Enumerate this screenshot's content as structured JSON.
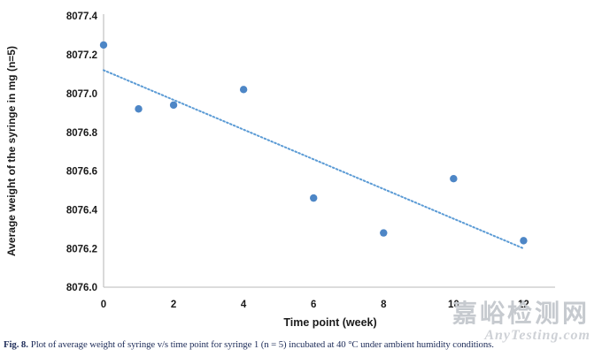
{
  "figure": {
    "caption_label": "Fig. 8.",
    "caption_text": "Plot of average weight of syringe v/s time point for syringe 1 (n = 5) incubated at 40 °C under ambient humidity conditions."
  },
  "watermark": {
    "cn": "嘉峪检测网",
    "en": "AnyTesting.com"
  },
  "chart_data": {
    "type": "scatter",
    "title": "",
    "xlabel": "Time point (week)",
    "ylabel": "Average weight of the syringe in mg (n=5)",
    "x": [
      0,
      1,
      2,
      4,
      6,
      8,
      10,
      12
    ],
    "y": [
      8077.25,
      8076.92,
      8076.94,
      8077.02,
      8076.46,
      8076.28,
      8076.56,
      8076.24
    ],
    "xlim": [
      0,
      12.9
    ],
    "ylim": [
      8076.0,
      8077.4
    ],
    "x_ticks": [
      0,
      2,
      4,
      6,
      8,
      10,
      12
    ],
    "y_ticks": [
      8076.0,
      8076.2,
      8076.4,
      8076.6,
      8076.8,
      8077.0,
      8077.2,
      8077.4
    ],
    "y_tick_labels": [
      "8076.0",
      "8076.2",
      "8076.4",
      "8076.6",
      "8076.8",
      "8077.0",
      "8077.2",
      "8077.4"
    ],
    "trendline": {
      "type": "linear",
      "style": "dotted",
      "x1": 0,
      "y1": 8077.12,
      "x2": 12,
      "y2": 8076.2
    },
    "marker_color": "#4D86C6",
    "trendline_color": "#5B9BD5",
    "axis_color": "#C6C6C6",
    "text_color": "#1a1a1a",
    "grid": false,
    "legend": null
  }
}
